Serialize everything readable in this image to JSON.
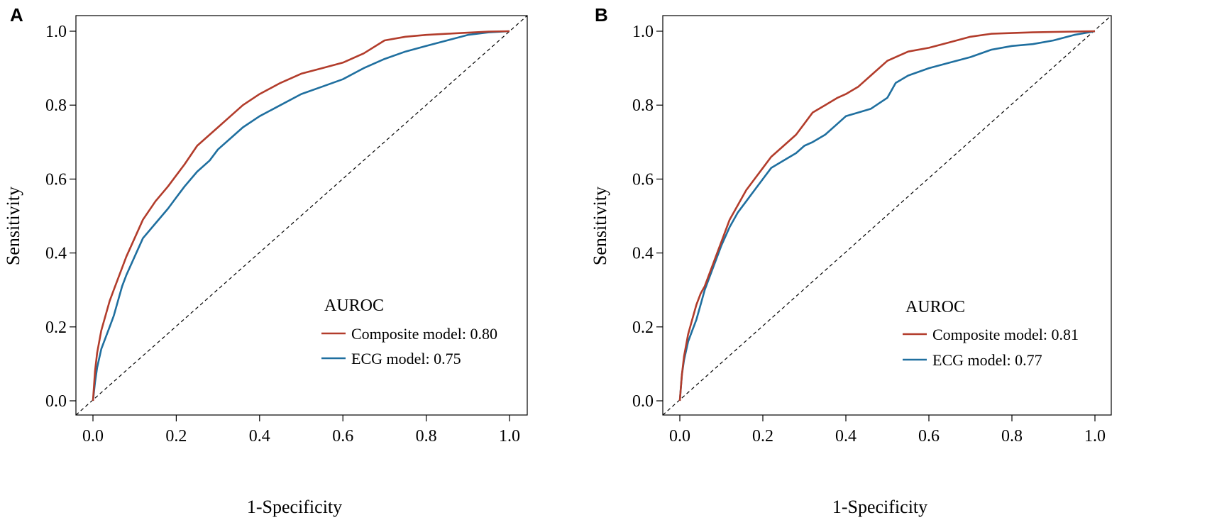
{
  "colors": {
    "composite": "#b23c2b",
    "ecg": "#1f6f9f",
    "reference": "#000000"
  },
  "chart_data": [
    {
      "panel": "A",
      "type": "line",
      "xlabel": "1-Specificity",
      "ylabel": "Sensitivity",
      "xlim": [
        0,
        1
      ],
      "ylim": [
        0,
        1
      ],
      "xticks": [
        "0.0",
        "0.2",
        "0.4",
        "0.6",
        "0.8",
        "1.0"
      ],
      "yticks": [
        "0.0",
        "0.2",
        "0.4",
        "0.6",
        "0.8",
        "1.0"
      ],
      "grid": false,
      "legend": {
        "title": "AUROC",
        "placement": "bottom-right",
        "entries": [
          "Composite model:  0.80",
          "ECG model: 0.75"
        ]
      },
      "series": [
        {
          "key": "composite",
          "x": [
            0,
            0.005,
            0.01,
            0.02,
            0.03,
            0.04,
            0.05,
            0.06,
            0.07,
            0.08,
            0.1,
            0.12,
            0.15,
            0.18,
            0.2,
            0.22,
            0.25,
            0.28,
            0.3,
            0.33,
            0.36,
            0.4,
            0.45,
            0.5,
            0.55,
            0.6,
            0.65,
            0.7,
            0.75,
            0.8,
            0.85,
            0.9,
            0.95,
            1.0
          ],
          "y": [
            0,
            0.08,
            0.13,
            0.19,
            0.23,
            0.27,
            0.3,
            0.33,
            0.36,
            0.39,
            0.44,
            0.49,
            0.54,
            0.58,
            0.61,
            0.64,
            0.69,
            0.72,
            0.74,
            0.77,
            0.8,
            0.83,
            0.86,
            0.885,
            0.9,
            0.915,
            0.94,
            0.975,
            0.985,
            0.99,
            0.993,
            0.996,
            0.999,
            1.0
          ]
        },
        {
          "key": "ecg",
          "x": [
            0,
            0.005,
            0.01,
            0.02,
            0.03,
            0.04,
            0.05,
            0.06,
            0.07,
            0.08,
            0.1,
            0.12,
            0.15,
            0.18,
            0.2,
            0.22,
            0.25,
            0.28,
            0.3,
            0.33,
            0.36,
            0.4,
            0.45,
            0.5,
            0.55,
            0.6,
            0.65,
            0.7,
            0.75,
            0.8,
            0.85,
            0.9,
            0.95,
            1.0
          ],
          "y": [
            0,
            0.05,
            0.09,
            0.14,
            0.17,
            0.2,
            0.23,
            0.27,
            0.31,
            0.34,
            0.39,
            0.44,
            0.48,
            0.52,
            0.55,
            0.58,
            0.62,
            0.65,
            0.68,
            0.71,
            0.74,
            0.77,
            0.8,
            0.83,
            0.85,
            0.87,
            0.9,
            0.925,
            0.945,
            0.96,
            0.975,
            0.99,
            0.997,
            1.0
          ]
        }
      ]
    },
    {
      "panel": "B",
      "type": "line",
      "xlabel": "1-Specificity",
      "ylabel": "Sensitivity",
      "xlim": [
        0,
        1
      ],
      "ylim": [
        0,
        1
      ],
      "xticks": [
        "0.0",
        "0.2",
        "0.4",
        "0.6",
        "0.8",
        "1.0"
      ],
      "yticks": [
        "0.0",
        "0.2",
        "0.4",
        "0.6",
        "0.8",
        "1.0"
      ],
      "grid": false,
      "legend": {
        "title": "AUROC",
        "placement": "bottom-right",
        "entries": [
          "Composite model: 0.81",
          "ECG model: 0.77"
        ]
      },
      "series": [
        {
          "key": "composite",
          "x": [
            0,
            0.005,
            0.01,
            0.02,
            0.03,
            0.04,
            0.05,
            0.06,
            0.08,
            0.1,
            0.12,
            0.14,
            0.16,
            0.18,
            0.2,
            0.22,
            0.25,
            0.28,
            0.3,
            0.32,
            0.35,
            0.38,
            0.4,
            0.43,
            0.46,
            0.5,
            0.55,
            0.6,
            0.65,
            0.7,
            0.75,
            0.8,
            0.85,
            0.9,
            0.95,
            1.0
          ],
          "y": [
            0,
            0.07,
            0.12,
            0.18,
            0.22,
            0.26,
            0.29,
            0.31,
            0.37,
            0.43,
            0.49,
            0.53,
            0.57,
            0.6,
            0.63,
            0.66,
            0.69,
            0.72,
            0.75,
            0.78,
            0.8,
            0.82,
            0.83,
            0.85,
            0.88,
            0.92,
            0.945,
            0.955,
            0.97,
            0.985,
            0.993,
            0.995,
            0.997,
            0.998,
            0.999,
            1.0
          ]
        },
        {
          "key": "ecg",
          "x": [
            0,
            0.005,
            0.01,
            0.02,
            0.03,
            0.04,
            0.05,
            0.06,
            0.08,
            0.1,
            0.12,
            0.14,
            0.16,
            0.18,
            0.2,
            0.22,
            0.25,
            0.28,
            0.3,
            0.32,
            0.35,
            0.38,
            0.4,
            0.43,
            0.46,
            0.5,
            0.52,
            0.55,
            0.6,
            0.65,
            0.7,
            0.75,
            0.8,
            0.85,
            0.9,
            0.95,
            1.0
          ],
          "y": [
            0,
            0.07,
            0.11,
            0.16,
            0.19,
            0.22,
            0.26,
            0.3,
            0.36,
            0.42,
            0.47,
            0.51,
            0.54,
            0.57,
            0.6,
            0.63,
            0.65,
            0.67,
            0.69,
            0.7,
            0.72,
            0.75,
            0.77,
            0.78,
            0.79,
            0.82,
            0.86,
            0.88,
            0.9,
            0.915,
            0.93,
            0.95,
            0.96,
            0.965,
            0.975,
            0.99,
            1.0
          ]
        }
      ]
    }
  ]
}
